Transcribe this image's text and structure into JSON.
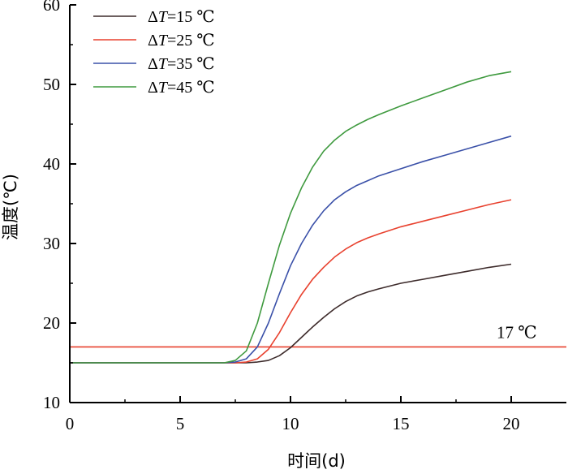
{
  "chart_data": {
    "type": "line",
    "xlabel": "时间(d)",
    "ylabel": "温度(℃)",
    "xlim": [
      0,
      22.5
    ],
    "ylim": [
      10,
      60
    ],
    "xticks": [
      "0",
      "5",
      "10",
      "15",
      "20"
    ],
    "yticks": [
      "10",
      "20",
      "30",
      "40",
      "50",
      "60"
    ],
    "grid": false,
    "legend_position": "top-left",
    "series": [
      {
        "name_prefix": "Δ",
        "name_var": "T",
        "name_suffix": "=15 ℃",
        "color": "#3d2b2b",
        "x": [
          0,
          6.5,
          7,
          7.5,
          8,
          8.5,
          9,
          9.5,
          10,
          10.5,
          11,
          11.5,
          12,
          12.5,
          13,
          13.5,
          14,
          15,
          16,
          17,
          18,
          19,
          20
        ],
        "y": [
          15,
          15,
          15,
          15,
          15,
          15.1,
          15.3,
          15.9,
          16.9,
          18.2,
          19.5,
          20.7,
          21.8,
          22.7,
          23.4,
          23.9,
          24.3,
          25,
          25.5,
          26,
          26.5,
          27,
          27.4
        ]
      },
      {
        "name_prefix": "Δ",
        "name_var": "T",
        "name_suffix": "=25 ℃",
        "color": "#e8412e",
        "x": [
          0,
          6.5,
          7,
          7.5,
          8,
          8.5,
          9,
          9.5,
          10,
          10.5,
          11,
          11.5,
          12,
          12.5,
          13,
          13.5,
          14,
          15,
          16,
          17,
          18,
          19,
          20
        ],
        "y": [
          15,
          15,
          15,
          15,
          15.1,
          15.5,
          16.7,
          18.8,
          21.3,
          23.6,
          25.5,
          27,
          28.3,
          29.3,
          30.1,
          30.7,
          31.2,
          32.1,
          32.8,
          33.5,
          34.2,
          34.9,
          35.5
        ]
      },
      {
        "name_prefix": "Δ",
        "name_var": "T",
        "name_suffix": "=35 ℃",
        "color": "#3a50a8",
        "x": [
          0,
          6.5,
          7,
          7.5,
          8,
          8.5,
          9,
          9.5,
          10,
          10.5,
          11,
          11.5,
          12,
          12.5,
          13,
          13.5,
          14,
          15,
          16,
          17,
          18,
          19,
          20
        ],
        "y": [
          15,
          15,
          15,
          15.1,
          15.5,
          17,
          20,
          23.7,
          27.2,
          30,
          32.3,
          34.1,
          35.5,
          36.5,
          37.3,
          37.9,
          38.5,
          39.4,
          40.3,
          41.1,
          41.9,
          42.7,
          43.5
        ]
      },
      {
        "name_prefix": "Δ",
        "name_var": "T",
        "name_suffix": "=45 ℃",
        "color": "#3f9a3f",
        "x": [
          0,
          6.5,
          7,
          7.5,
          8,
          8.5,
          9,
          9.5,
          10,
          10.5,
          11,
          11.5,
          12,
          12.5,
          13,
          13.5,
          14,
          15,
          16,
          17,
          18,
          19,
          20
        ],
        "y": [
          15,
          15,
          15,
          15.3,
          16.5,
          20,
          25,
          29.8,
          33.8,
          37,
          39.6,
          41.6,
          43,
          44.1,
          44.9,
          45.6,
          46.2,
          47.3,
          48.3,
          49.3,
          50.3,
          51.1,
          51.6
        ]
      }
    ],
    "reference_line": {
      "y": 17,
      "color": "#e8412e",
      "label": "17 ℃"
    }
  }
}
